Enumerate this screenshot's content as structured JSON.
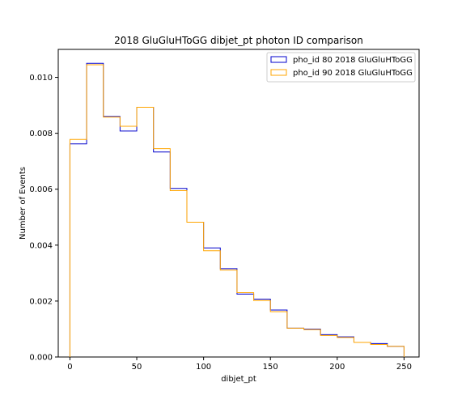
{
  "chart_data": {
    "type": "histogram",
    "title": "2018 GluGluHToGG dibjet_pt photon ID comparison",
    "xlabel": "dibjet_pt",
    "ylabel": "Number of Events",
    "xlim": [
      -8.75,
      261.25
    ],
    "ylim": [
      0,
      0.011
    ],
    "xticks": [
      0,
      50,
      100,
      150,
      200,
      250
    ],
    "yticks": [
      0.0,
      0.002,
      0.004,
      0.006,
      0.008,
      0.01
    ],
    "ytick_labels": [
      "0.000",
      "0.002",
      "0.004",
      "0.006",
      "0.008",
      "0.010"
    ],
    "grid": false,
    "legend_position": "top-right",
    "bin_edges": [
      0,
      12.5,
      25,
      37.5,
      50,
      62.5,
      75,
      87.5,
      100,
      112.5,
      125,
      137.5,
      150,
      162.5,
      175,
      187.5,
      200,
      212.5,
      225,
      237.5,
      250
    ],
    "series": [
      {
        "name": "pho_id 80 2018 GluGluHToGG",
        "color": "#0000cc",
        "values": [
          0.00762,
          0.0105,
          0.0086,
          0.00808,
          0.00893,
          0.00733,
          0.00603,
          0.00482,
          0.0039,
          0.00316,
          0.00225,
          0.00207,
          0.00168,
          0.00103,
          0.001,
          0.0008,
          0.00072,
          0.00052,
          0.00048,
          0.00038
        ]
      },
      {
        "name": "pho_id 90 2018 GluGluHToGG",
        "color": "#ffa500",
        "values": [
          0.00778,
          0.01045,
          0.00858,
          0.00825,
          0.00893,
          0.00745,
          0.00595,
          0.00482,
          0.0038,
          0.00311,
          0.0023,
          0.00202,
          0.00162,
          0.00103,
          0.00098,
          0.00077,
          0.0007,
          0.00052,
          0.00045,
          0.00038
        ]
      }
    ]
  }
}
